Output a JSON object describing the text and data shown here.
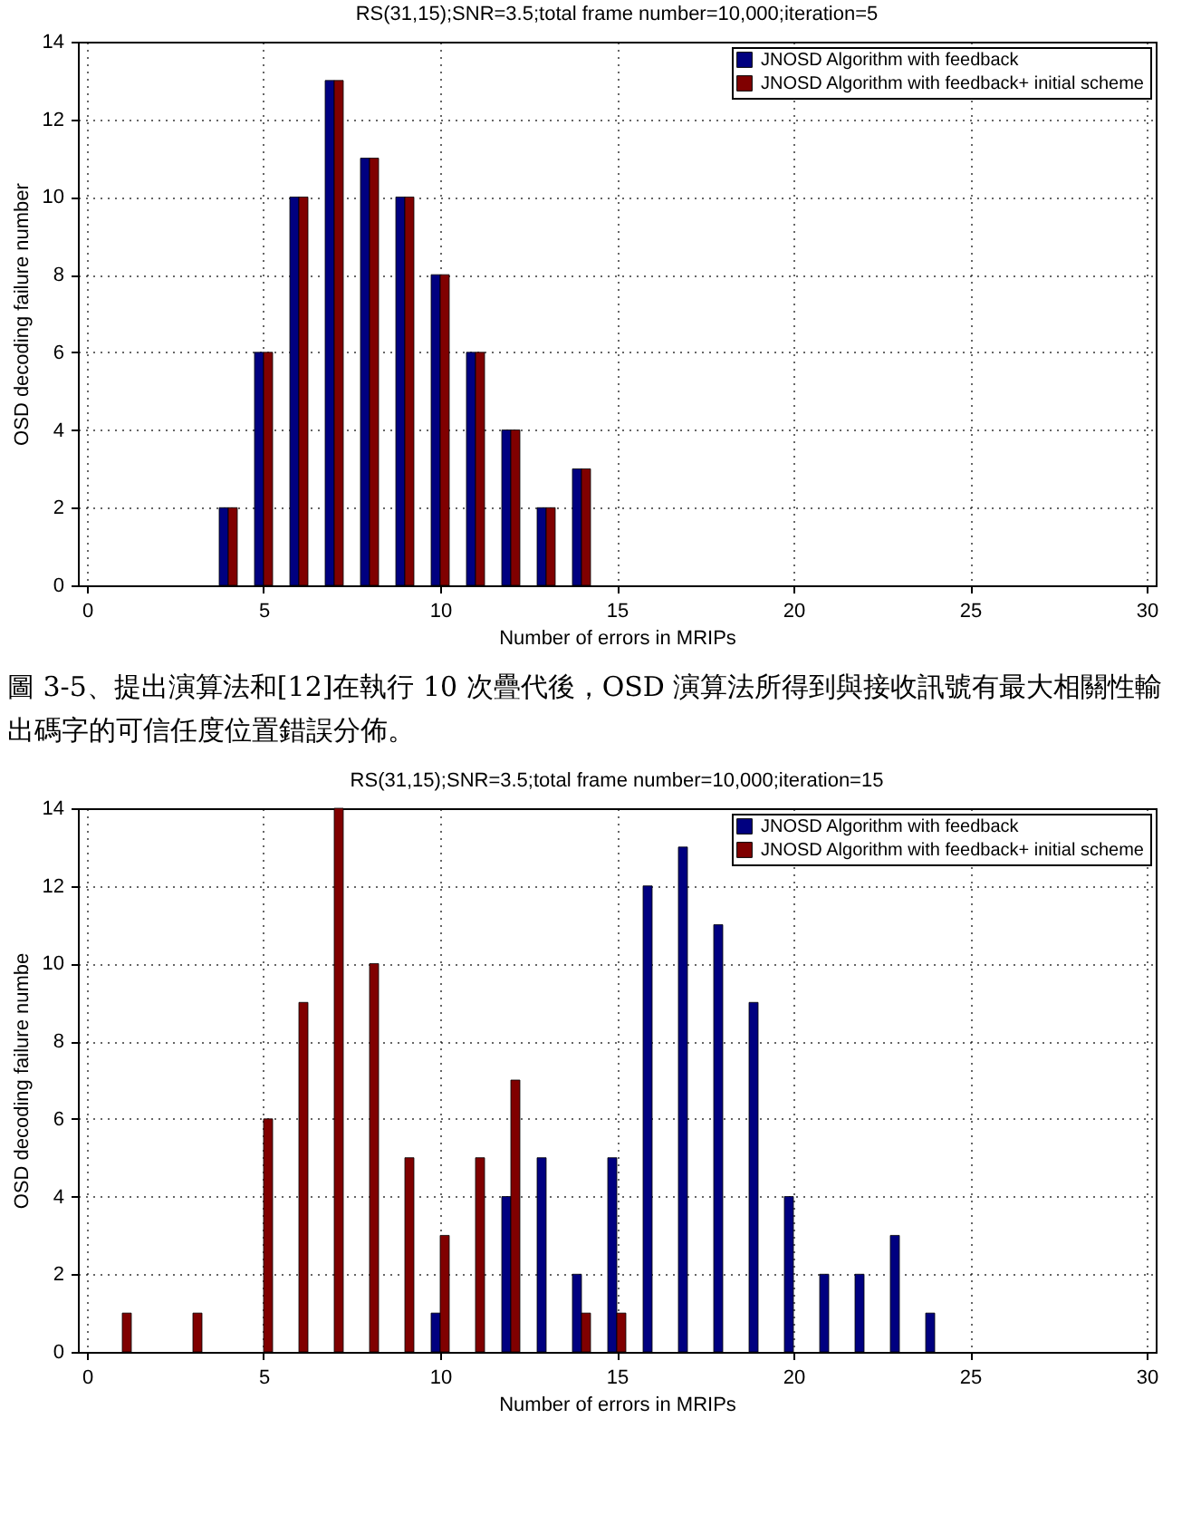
{
  "chart_data": [
    {
      "type": "bar",
      "title": "RS(31,15);SNR=3.5;total frame number=10,000;iteration=5",
      "xlabel": "Number of errors in MRIPs",
      "ylabel": "OSD decoding failure number",
      "x": [
        4,
        5,
        6,
        7,
        8,
        9,
        10,
        11,
        12,
        13,
        14
      ],
      "series": [
        {
          "name": "JNOSD Algorithm with feedback",
          "color": "#000080",
          "values": [
            2,
            6,
            10,
            13,
            11,
            10,
            8,
            6,
            4,
            2,
            3
          ]
        },
        {
          "name": "JNOSD Algorithm with feedback+ initial scheme",
          "color": "#800000",
          "values": [
            2,
            6,
            10,
            13,
            11,
            10,
            8,
            6,
            4,
            2,
            3
          ]
        }
      ],
      "xlim": [
        0,
        30
      ],
      "ylim": [
        0,
        14
      ],
      "xticks": [
        0,
        5,
        10,
        15,
        20,
        25,
        30
      ],
      "yticks": [
        0,
        2,
        4,
        6,
        8,
        10,
        12,
        14
      ],
      "grid": true,
      "legend": "top right",
      "annotations": [
        "圖 3-5、提出演算法和[12]在執行 10 次疊代後，OSD 演算法所得到與接收訊號有最大相關性輸出碼字的可信任度位置錯誤分佈。"
      ]
    },
    {
      "type": "bar",
      "title": "RS(31,15);SNR=3.5;total frame number=10,000;iteration=15",
      "xlabel": "Number of errors in MRIPs",
      "ylabel": "OSD decoding failure numbe",
      "x": [
        1,
        3,
        5,
        6,
        7,
        8,
        9,
        10,
        11,
        12,
        13,
        14,
        15,
        16,
        17,
        18,
        19,
        20,
        21,
        22,
        23,
        24
      ],
      "series": [
        {
          "name": "JNOSD Algorithm with feedback",
          "color": "#000080",
          "values": [
            null,
            null,
            null,
            null,
            null,
            null,
            null,
            1,
            null,
            4,
            5,
            2,
            5,
            12,
            13,
            11,
            9,
            4,
            2,
            2,
            3,
            1
          ]
        },
        {
          "name": "JNOSD Algorithm with feedback+ initial scheme",
          "color": "#800000",
          "values": [
            1,
            1,
            6,
            9,
            14,
            10,
            5,
            3,
            5,
            7,
            null,
            1,
            1,
            null,
            null,
            null,
            null,
            null,
            null,
            null,
            null,
            null
          ]
        }
      ],
      "xlim": [
        0,
        30
      ],
      "ylim": [
        0,
        14
      ],
      "xticks": [
        0,
        5,
        10,
        15,
        20,
        25,
        30
      ],
      "yticks": [
        0,
        2,
        4,
        6,
        8,
        10,
        12,
        14
      ],
      "grid": true,
      "legend": "top right"
    }
  ]
}
